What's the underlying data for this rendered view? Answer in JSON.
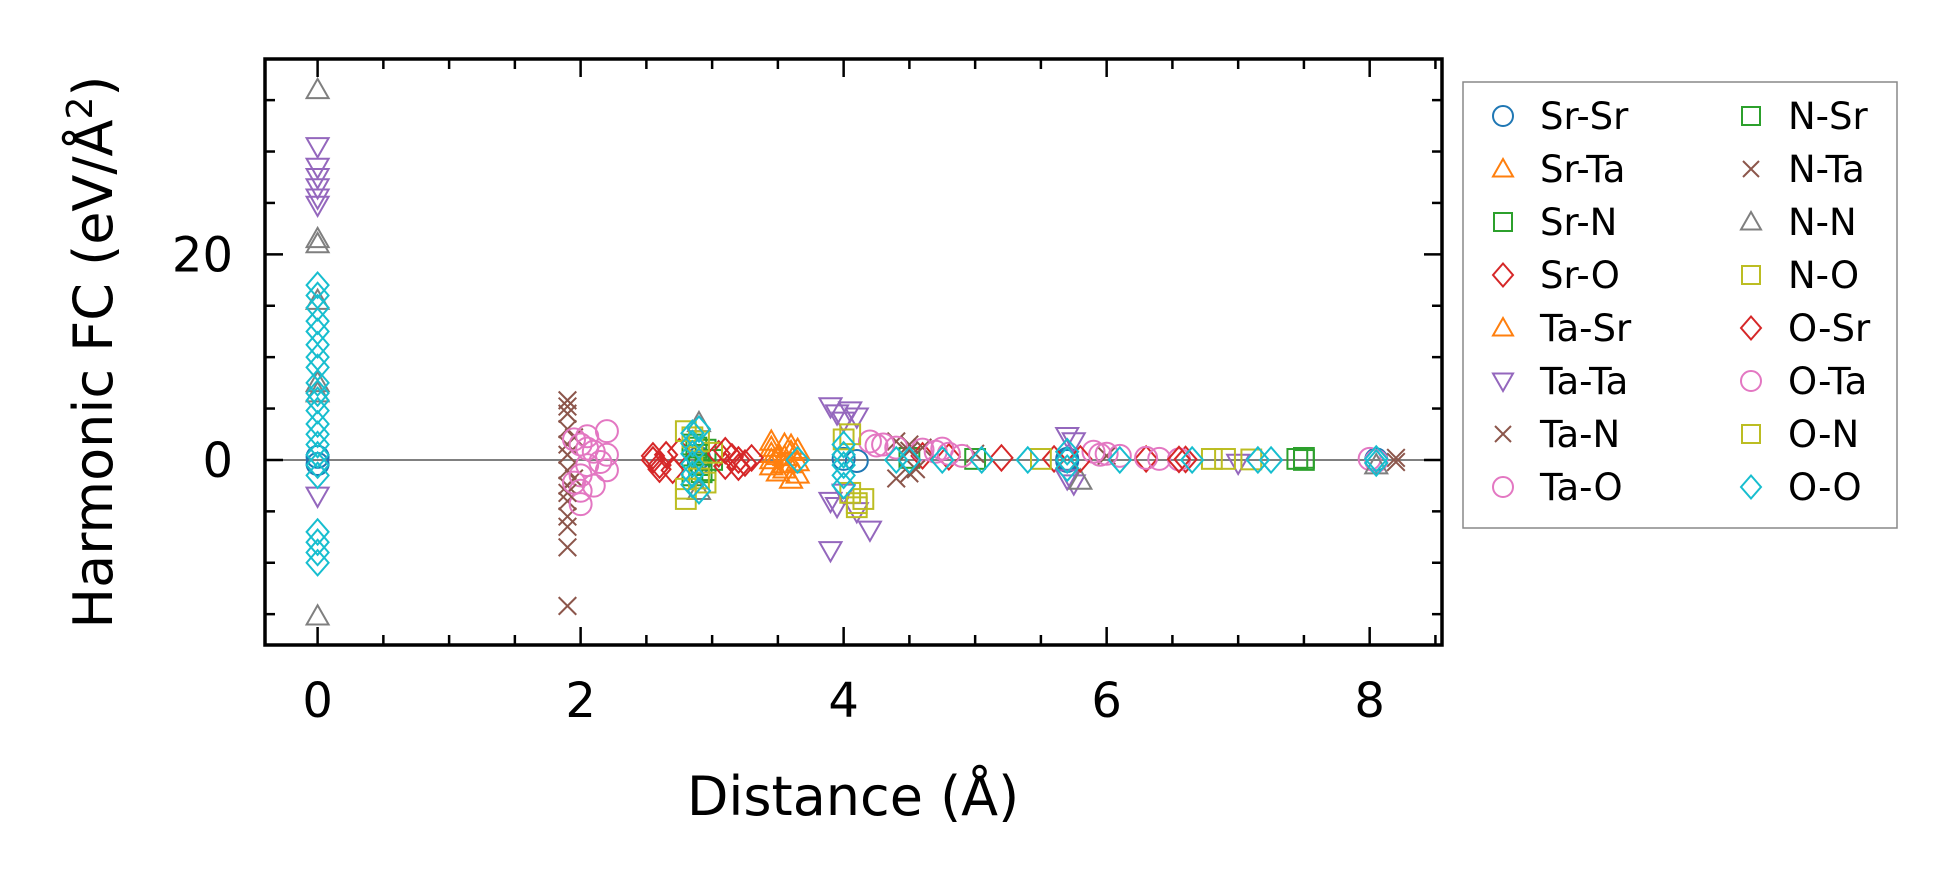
{
  "chart_data": {
    "type": "scatter",
    "xlabel": "Distance (Å)",
    "ylabel_main": "Harmonic FC (eV/Å",
    "ylabel_sup": "2",
    "ylabel_close": ")",
    "xlim": [
      -0.4,
      8.55
    ],
    "ylim": [
      -18,
      39
    ],
    "xticks": [
      0,
      2,
      4,
      6,
      8
    ],
    "xtick_labels": [
      "0",
      "2",
      "4",
      "6",
      "8"
    ],
    "yticks": [
      0,
      20
    ],
    "ytick_labels": [
      "0",
      "20"
    ],
    "zero_line": 0,
    "legend_position": "outside-right",
    "series": [
      {
        "name": "Sr-Sr",
        "marker": "circle",
        "color": "#1f77b4",
        "points": [
          [
            0,
            0.3
          ],
          [
            0,
            -0.4
          ],
          [
            2.9,
            0.2
          ],
          [
            2.9,
            -0.3
          ],
          [
            4.0,
            0.1
          ],
          [
            4.1,
            -0.1
          ],
          [
            5.7,
            0.1
          ],
          [
            5.7,
            -0.1
          ],
          [
            8.05,
            0.05
          ]
        ]
      },
      {
        "name": "Sr-Ta",
        "marker": "triangle-up",
        "color": "#ff7f0e",
        "points": [
          [
            3.45,
            1.8
          ],
          [
            3.45,
            1.2
          ],
          [
            3.45,
            0.6
          ],
          [
            3.45,
            0
          ],
          [
            3.45,
            -0.6
          ],
          [
            3.5,
            -1.2
          ],
          [
            3.55,
            1.5
          ],
          [
            3.55,
            0.3
          ],
          [
            3.55,
            -0.9
          ],
          [
            3.6,
            0.8
          ],
          [
            3.6,
            -0.4
          ],
          [
            3.6,
            -1.9
          ],
          [
            3.65,
            1.0
          ],
          [
            3.65,
            -0.2
          ]
        ]
      },
      {
        "name": "Sr-N",
        "marker": "square",
        "color": "#2ca02c",
        "points": [
          [
            2.85,
            1.5
          ],
          [
            2.85,
            -1.5
          ],
          [
            2.9,
            0.5
          ],
          [
            2.9,
            -0.5
          ],
          [
            2.95,
            1
          ],
          [
            2.95,
            -1
          ],
          [
            3.0,
            0
          ],
          [
            4.5,
            0.2
          ],
          [
            5.0,
            0.1
          ],
          [
            7.45,
            0.1
          ],
          [
            7.5,
            0.2
          ]
        ]
      },
      {
        "name": "Sr-O",
        "marker": "diamond",
        "color": "#d62728",
        "points": [
          [
            2.55,
            0
          ],
          [
            2.6,
            -0.5
          ],
          [
            2.65,
            0.5
          ],
          [
            2.7,
            -1
          ],
          [
            2.75,
            0.8
          ],
          [
            3.05,
            0.6
          ],
          [
            3.1,
            -0.6
          ],
          [
            3.15,
            0.3
          ],
          [
            3.2,
            0
          ],
          [
            3.25,
            -0.3
          ],
          [
            3.3,
            0.2
          ],
          [
            4.6,
            0.4
          ],
          [
            4.8,
            0.3
          ],
          [
            5.2,
            0.2
          ],
          [
            5.6,
            0.1
          ],
          [
            6.3,
            0.1
          ],
          [
            6.6,
            0.05
          ]
        ]
      },
      {
        "name": "Ta-Sr",
        "marker": "triangle-up",
        "color": "#ff7f0e",
        "points": [
          [
            3.5,
            0.4
          ],
          [
            3.55,
            -0.4
          ],
          [
            3.6,
            1.4
          ],
          [
            3.65,
            -1.4
          ]
        ]
      },
      {
        "name": "Ta-Ta",
        "marker": "triangle-down",
        "color": "#9467bd",
        "points": [
          [
            0,
            30.5
          ],
          [
            0,
            28.5
          ],
          [
            0,
            27.5
          ],
          [
            0,
            26.5
          ],
          [
            0,
            25.5
          ],
          [
            0,
            24.8
          ],
          [
            0,
            -3.5
          ],
          [
            3.9,
            5.2
          ],
          [
            3.95,
            4.5
          ],
          [
            4.0,
            3.8
          ],
          [
            4.05,
            4.8
          ],
          [
            4.1,
            4.2
          ],
          [
            3.9,
            -4
          ],
          [
            3.95,
            -4.5
          ],
          [
            3.9,
            -8.8
          ],
          [
            4.1,
            -5
          ],
          [
            4.2,
            -6.8
          ],
          [
            4.0,
            -3.2
          ],
          [
            5.7,
            2.3
          ],
          [
            5.75,
            1.8
          ],
          [
            5.7,
            -1.8
          ],
          [
            5.75,
            -2.3
          ],
          [
            7.0,
            -0.3
          ]
        ]
      },
      {
        "name": "Ta-N",
        "marker": "x",
        "color": "#8c564b",
        "points": [
          [
            1.9,
            5.8
          ],
          [
            1.9,
            5.2
          ],
          [
            1.9,
            3.0
          ],
          [
            1.9,
            1.5
          ],
          [
            1.9,
            0.5
          ],
          [
            1.9,
            -1
          ],
          [
            1.9,
            -2.5
          ],
          [
            1.9,
            -4
          ],
          [
            1.9,
            -5.5
          ],
          [
            1.9,
            -6.5
          ],
          [
            1.9,
            -8.5
          ],
          [
            1.9,
            -14.2
          ],
          [
            1.95,
            2.2
          ],
          [
            1.95,
            -1.8
          ],
          [
            4.4,
            1.8
          ],
          [
            4.5,
            1.5
          ],
          [
            4.6,
            1.2
          ],
          [
            4.5,
            -1.3
          ],
          [
            4.4,
            -1.8
          ],
          [
            5.0,
            0.6
          ],
          [
            6.0,
            0.4
          ],
          [
            8.2,
            0.2
          ],
          [
            8.2,
            -0.2
          ]
        ]
      },
      {
        "name": "Ta-O",
        "marker": "circle",
        "color": "#e377c2",
        "points": [
          [
            1.95,
            2
          ],
          [
            2.0,
            1.5
          ],
          [
            2.0,
            -1.5
          ],
          [
            2.05,
            2.3
          ],
          [
            2.05,
            -0.5
          ],
          [
            2.0,
            -3
          ],
          [
            2.0,
            -4.3
          ],
          [
            2.1,
            0.8
          ],
          [
            2.15,
            -0.2
          ],
          [
            2.2,
            2.8
          ],
          [
            2.2,
            0.5
          ],
          [
            2.2,
            -1.0
          ],
          [
            4.2,
            1.8
          ],
          [
            4.3,
            1.5
          ],
          [
            4.4,
            1.2
          ],
          [
            4.6,
            1.0
          ],
          [
            4.7,
            0.8
          ],
          [
            4.8,
            0.6
          ],
          [
            4.9,
            0.4
          ],
          [
            5.9,
            0.8
          ],
          [
            6.0,
            0.6
          ],
          [
            6.1,
            0.4
          ],
          [
            6.3,
            0.2
          ],
          [
            6.4,
            0.1
          ],
          [
            6.55,
            0.05
          ],
          [
            8.0,
            0.1
          ],
          [
            8.05,
            -0.1
          ]
        ]
      },
      {
        "name": "N-Sr",
        "marker": "square",
        "color": "#2ca02c",
        "points": [
          [
            2.88,
            1.2
          ],
          [
            2.92,
            -1.2
          ],
          [
            7.5,
            0
          ]
        ]
      },
      {
        "name": "N-Ta",
        "marker": "x",
        "color": "#8c564b",
        "points": [
          [
            1.9,
            4.5
          ],
          [
            1.9,
            -3.2
          ],
          [
            4.5,
            0.9
          ],
          [
            4.55,
            -0.9
          ]
        ]
      },
      {
        "name": "N-N",
        "marker": "triangle-up",
        "color": "#7f7f7f",
        "points": [
          [
            0,
            36.0
          ],
          [
            0,
            21.5
          ],
          [
            0,
            21.0
          ],
          [
            0,
            15.5
          ],
          [
            0,
            7.5
          ],
          [
            0,
            6.5
          ],
          [
            0,
            -15.2
          ],
          [
            2.9,
            3.6
          ],
          [
            2.9,
            -3.0
          ],
          [
            5.8,
            -2.0
          ],
          [
            8.05,
            -0.5
          ]
        ]
      },
      {
        "name": "N-O",
        "marker": "square",
        "color": "#bcbd22",
        "points": [
          [
            2.8,
            2.8
          ],
          [
            2.8,
            -2.8
          ],
          [
            2.8,
            -3.8
          ],
          [
            2.9,
            1.8
          ],
          [
            2.9,
            -1.8
          ],
          [
            3.0,
            0.7
          ],
          [
            4.05,
            2.5
          ],
          [
            4.05,
            -3.2
          ],
          [
            4.1,
            -4.2
          ],
          [
            4.1,
            -4.6
          ],
          [
            5.5,
            0.1
          ],
          [
            6.8,
            0.1
          ],
          [
            7.1,
            0.05
          ]
        ]
      },
      {
        "name": "O-Sr",
        "marker": "diamond",
        "color": "#d62728",
        "points": [
          [
            2.55,
            0.4
          ],
          [
            2.6,
            -0.9
          ],
          [
            3.1,
            0.9
          ],
          [
            3.2,
            -0.7
          ],
          [
            5.8,
            0.1
          ],
          [
            6.55,
            0.05
          ]
        ]
      },
      {
        "name": "O-Ta",
        "marker": "circle",
        "color": "#e377c2",
        "points": [
          [
            1.95,
            -2.2
          ],
          [
            2.05,
            1.1
          ],
          [
            2.1,
            -2.5
          ],
          [
            4.25,
            1.4
          ],
          [
            4.75,
            1.1
          ],
          [
            5.95,
            0.5
          ]
        ]
      },
      {
        "name": "O-N",
        "marker": "square",
        "color": "#bcbd22",
        "points": [
          [
            2.85,
            2.2
          ],
          [
            2.95,
            -2.2
          ],
          [
            4.0,
            2.0
          ],
          [
            4.15,
            -3.8
          ],
          [
            6.9,
            0.1
          ]
        ]
      },
      {
        "name": "O-O",
        "marker": "diamond",
        "color": "#17becf",
        "points": [
          [
            0,
            17
          ],
          [
            0,
            16
          ],
          [
            0,
            14.8
          ],
          [
            0,
            13.5
          ],
          [
            0,
            12.5
          ],
          [
            0,
            11.2
          ],
          [
            0,
            10
          ],
          [
            0,
            9
          ],
          [
            0,
            7.5
          ],
          [
            0,
            6.5
          ],
          [
            0,
            5.8
          ],
          [
            0,
            4.8
          ],
          [
            0,
            3.5
          ],
          [
            0,
            2.5
          ],
          [
            0,
            1.5
          ],
          [
            0,
            0.5
          ],
          [
            0,
            -0.5
          ],
          [
            0,
            -1.5
          ],
          [
            0,
            -7
          ],
          [
            0,
            -8
          ],
          [
            0,
            -9
          ],
          [
            0,
            -10
          ],
          [
            2.85,
            2.6
          ],
          [
            2.85,
            1.6
          ],
          [
            2.85,
            0.6
          ],
          [
            2.85,
            -0.4
          ],
          [
            2.85,
            -1.4
          ],
          [
            2.85,
            -2.4
          ],
          [
            2.9,
            3
          ],
          [
            2.9,
            -3
          ],
          [
            3.65,
            0
          ],
          [
            4.0,
            1.5
          ],
          [
            4.0,
            0.5
          ],
          [
            4.0,
            -0.5
          ],
          [
            4.0,
            -1.5
          ],
          [
            4.0,
            -2.5
          ],
          [
            4.4,
            0
          ],
          [
            4.5,
            0
          ],
          [
            4.75,
            0
          ],
          [
            5.05,
            0
          ],
          [
            5.4,
            0
          ],
          [
            5.7,
            0.8
          ],
          [
            5.7,
            -0.8
          ],
          [
            5.7,
            0
          ],
          [
            6.1,
            0
          ],
          [
            6.65,
            0
          ],
          [
            7.15,
            0
          ],
          [
            7.25,
            0
          ],
          [
            8.05,
            0.1
          ],
          [
            8.05,
            -0.3
          ]
        ]
      }
    ]
  }
}
